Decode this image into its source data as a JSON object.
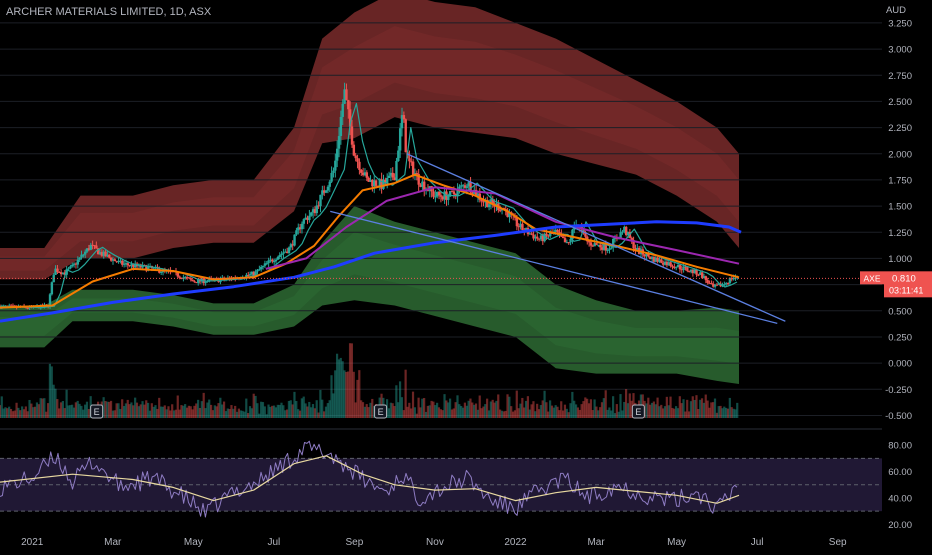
{
  "chart_title": "ARCHER MATERIALS LIMITED, 1D, ASX",
  "currency_label": "AUD",
  "price_badge": {
    "symbol": "AXE",
    "value": "0.810",
    "countdown": "03:11:41"
  },
  "colors": {
    "background": "#000000",
    "axis_text": "#b2b5be",
    "up": "#26a69a",
    "down": "#ef5350",
    "ma_fast": "#26a69a",
    "ma_orange": "#f57c00",
    "ma_purple": "#9c27b0",
    "ma_blue": "#1e3cff",
    "trendline": "#5b7fe0",
    "upper_band": "#7a2b2b",
    "lower_band": "#2e6b34",
    "rsi_line": "#8e7cc3",
    "rsi_ma": "#e8d9a0",
    "rsi_fill": "#241b3a",
    "badge": "#ef5350"
  },
  "chart_data": {
    "type": "candlestick",
    "title": "ARCHER MATERIALS LIMITED, 1D, ASX",
    "y_unit": "AUD",
    "ylim": [
      -0.62,
      3.45
    ],
    "y_ticks": [
      "3.250",
      "3.000",
      "2.750",
      "2.500",
      "2.250",
      "2.000",
      "1.750",
      "1.500",
      "1.250",
      "1.000",
      "0.750",
      "0.500",
      "0.250",
      "0.000",
      "-0.250",
      "-0.500"
    ],
    "y_tick_values": [
      3.25,
      3.0,
      2.75,
      2.5,
      2.25,
      2.0,
      1.75,
      1.5,
      1.25,
      1.0,
      0.75,
      0.5,
      0.25,
      0.0,
      -0.25,
      -0.5
    ],
    "x_ticks": [
      "2021",
      "Mar",
      "May",
      "Jul",
      "Sep",
      "Nov",
      "2022",
      "Mar",
      "May",
      "Jul",
      "Sep"
    ],
    "x_tick_months": [
      0,
      2,
      4,
      6,
      8,
      10,
      12,
      14,
      16,
      18,
      20
    ],
    "x_range_months": [
      -0.8,
      21.1
    ],
    "last_price": 0.81,
    "price_path": [
      {
        "m": -0.8,
        "p": 0.54
      },
      {
        "m": 0.0,
        "p": 0.53
      },
      {
        "m": 0.4,
        "p": 0.55
      },
      {
        "m": 0.55,
        "p": 0.9
      },
      {
        "m": 0.8,
        "p": 0.86
      },
      {
        "m": 1.0,
        "p": 0.92
      },
      {
        "m": 1.45,
        "p": 1.12
      },
      {
        "m": 1.7,
        "p": 1.05
      },
      {
        "m": 2.2,
        "p": 0.95
      },
      {
        "m": 3.0,
        "p": 0.9
      },
      {
        "m": 3.5,
        "p": 0.86
      },
      {
        "m": 4.0,
        "p": 0.78
      },
      {
        "m": 4.8,
        "p": 0.8
      },
      {
        "m": 5.5,
        "p": 0.85
      },
      {
        "m": 6.0,
        "p": 1.0
      },
      {
        "m": 6.4,
        "p": 1.1
      },
      {
        "m": 6.7,
        "p": 1.35
      },
      {
        "m": 7.0,
        "p": 1.45
      },
      {
        "m": 7.5,
        "p": 1.85
      },
      {
        "m": 7.75,
        "p": 2.6
      },
      {
        "m": 8.0,
        "p": 2.0
      },
      {
        "m": 8.3,
        "p": 1.75
      },
      {
        "m": 8.7,
        "p": 1.7
      },
      {
        "m": 9.0,
        "p": 1.8
      },
      {
        "m": 9.2,
        "p": 2.4
      },
      {
        "m": 9.3,
        "p": 1.95
      },
      {
        "m": 9.6,
        "p": 1.75
      },
      {
        "m": 10.0,
        "p": 1.6
      },
      {
        "m": 10.4,
        "p": 1.6
      },
      {
        "m": 10.8,
        "p": 1.72
      },
      {
        "m": 11.2,
        "p": 1.55
      },
      {
        "m": 11.7,
        "p": 1.48
      },
      {
        "m": 12.1,
        "p": 1.3
      },
      {
        "m": 12.6,
        "p": 1.18
      },
      {
        "m": 13.0,
        "p": 1.25
      },
      {
        "m": 13.3,
        "p": 1.12
      },
      {
        "m": 13.5,
        "p": 1.35
      },
      {
        "m": 13.8,
        "p": 1.15
      },
      {
        "m": 14.3,
        "p": 1.1
      },
      {
        "m": 14.7,
        "p": 1.28
      },
      {
        "m": 15.0,
        "p": 1.08
      },
      {
        "m": 15.4,
        "p": 1.0
      },
      {
        "m": 15.8,
        "p": 0.95
      },
      {
        "m": 16.2,
        "p": 0.9
      },
      {
        "m": 16.6,
        "p": 0.85
      },
      {
        "m": 16.9,
        "p": 0.72
      },
      {
        "m": 17.2,
        "p": 0.76
      },
      {
        "m": 17.4,
        "p": 0.82
      },
      {
        "m": 17.55,
        "p": 0.81
      }
    ],
    "upper_band": [
      {
        "m": -0.8,
        "p": 0.95,
        "w": 0.15
      },
      {
        "m": 0.3,
        "p": 0.95,
        "w": 0.15
      },
      {
        "m": 1.2,
        "p": 1.3,
        "w": 0.3
      },
      {
        "m": 2.5,
        "p": 1.3,
        "w": 0.3
      },
      {
        "m": 3.5,
        "p": 1.4,
        "w": 0.3
      },
      {
        "m": 4.5,
        "p": 1.45,
        "w": 0.3
      },
      {
        "m": 5.5,
        "p": 1.45,
        "w": 0.3
      },
      {
        "m": 6.5,
        "p": 1.85,
        "w": 0.4
      },
      {
        "m": 7.2,
        "p": 2.6,
        "w": 0.5
      },
      {
        "m": 8.0,
        "p": 2.75,
        "w": 0.6
      },
      {
        "m": 9.0,
        "p": 2.95,
        "w": 0.6
      },
      {
        "m": 10.0,
        "p": 2.85,
        "w": 0.6
      },
      {
        "m": 11.0,
        "p": 2.8,
        "w": 0.6
      },
      {
        "m": 12.0,
        "p": 2.7,
        "w": 0.55
      },
      {
        "m": 13.0,
        "p": 2.55,
        "w": 0.55
      },
      {
        "m": 14.0,
        "p": 2.4,
        "w": 0.5
      },
      {
        "m": 15.0,
        "p": 2.25,
        "w": 0.45
      },
      {
        "m": 16.0,
        "p": 2.05,
        "w": 0.45
      },
      {
        "m": 17.0,
        "p": 1.8,
        "w": 0.45
      },
      {
        "m": 17.55,
        "p": 1.55,
        "w": 0.45
      }
    ],
    "lower_band": [
      {
        "m": -0.8,
        "p": 0.35,
        "w": 0.2
      },
      {
        "m": 0.3,
        "p": 0.35,
        "w": 0.2
      },
      {
        "m": 1.0,
        "p": 0.55,
        "w": 0.15
      },
      {
        "m": 2.5,
        "p": 0.55,
        "w": 0.15
      },
      {
        "m": 3.5,
        "p": 0.5,
        "w": 0.15
      },
      {
        "m": 4.5,
        "p": 0.42,
        "w": 0.15
      },
      {
        "m": 5.5,
        "p": 0.42,
        "w": 0.15
      },
      {
        "m": 6.5,
        "p": 0.55,
        "w": 0.2
      },
      {
        "m": 7.2,
        "p": 0.85,
        "w": 0.3
      },
      {
        "m": 8.0,
        "p": 1.05,
        "w": 0.45
      },
      {
        "m": 9.0,
        "p": 0.95,
        "w": 0.4
      },
      {
        "m": 10.0,
        "p": 0.85,
        "w": 0.4
      },
      {
        "m": 11.0,
        "p": 0.75,
        "w": 0.4
      },
      {
        "m": 12.0,
        "p": 0.65,
        "w": 0.4
      },
      {
        "m": 13.0,
        "p": 0.35,
        "w": 0.4
      },
      {
        "m": 14.0,
        "p": 0.25,
        "w": 0.35
      },
      {
        "m": 15.0,
        "p": 0.2,
        "w": 0.3
      },
      {
        "m": 16.0,
        "p": 0.2,
        "w": 0.3
      },
      {
        "m": 17.0,
        "p": 0.18,
        "w": 0.35
      },
      {
        "m": 17.55,
        "p": 0.15,
        "w": 0.35
      }
    ],
    "ma_orange": [
      {
        "m": -0.8,
        "p": 0.53
      },
      {
        "m": 0.5,
        "p": 0.55
      },
      {
        "m": 1.5,
        "p": 0.78
      },
      {
        "m": 2.5,
        "p": 0.9
      },
      {
        "m": 3.5,
        "p": 0.88
      },
      {
        "m": 4.5,
        "p": 0.8
      },
      {
        "m": 5.5,
        "p": 0.82
      },
      {
        "m": 6.3,
        "p": 0.95
      },
      {
        "m": 7.0,
        "p": 1.12
      },
      {
        "m": 7.6,
        "p": 1.4
      },
      {
        "m": 8.2,
        "p": 1.65
      },
      {
        "m": 9.0,
        "p": 1.72
      },
      {
        "m": 9.5,
        "p": 1.8
      },
      {
        "m": 10.2,
        "p": 1.7
      },
      {
        "m": 11.0,
        "p": 1.6
      },
      {
        "m": 11.8,
        "p": 1.45
      },
      {
        "m": 12.5,
        "p": 1.28
      },
      {
        "m": 13.5,
        "p": 1.2
      },
      {
        "m": 14.5,
        "p": 1.12
      },
      {
        "m": 15.5,
        "p": 1.03
      },
      {
        "m": 16.5,
        "p": 0.92
      },
      {
        "m": 17.55,
        "p": 0.82
      }
    ],
    "ma_purple": [
      {
        "m": 5.8,
        "p": 0.9
      },
      {
        "m": 6.8,
        "p": 1.0
      },
      {
        "m": 7.8,
        "p": 1.3
      },
      {
        "m": 8.8,
        "p": 1.55
      },
      {
        "m": 10.0,
        "p": 1.68
      },
      {
        "m": 11.5,
        "p": 1.62
      },
      {
        "m": 13.0,
        "p": 1.35
      },
      {
        "m": 14.5,
        "p": 1.2
      },
      {
        "m": 16.0,
        "p": 1.08
      },
      {
        "m": 17.55,
        "p": 0.95
      }
    ],
    "ma_blue": [
      {
        "m": -0.8,
        "p": 0.4
      },
      {
        "m": 0.5,
        "p": 0.48
      },
      {
        "m": 2.0,
        "p": 0.58
      },
      {
        "m": 3.5,
        "p": 0.66
      },
      {
        "m": 5.0,
        "p": 0.73
      },
      {
        "m": 6.5,
        "p": 0.82
      },
      {
        "m": 7.5,
        "p": 0.92
      },
      {
        "m": 8.5,
        "p": 1.05
      },
      {
        "m": 10.0,
        "p": 1.15
      },
      {
        "m": 11.5,
        "p": 1.22
      },
      {
        "m": 13.0,
        "p": 1.3
      },
      {
        "m": 14.5,
        "p": 1.33
      },
      {
        "m": 15.5,
        "p": 1.35
      },
      {
        "m": 16.5,
        "p": 1.34
      },
      {
        "m": 17.3,
        "p": 1.3
      },
      {
        "m": 17.6,
        "p": 1.25
      }
    ],
    "trendlines": [
      {
        "from": {
          "m": 7.4,
          "p": 1.45
        },
        "to": {
          "m": 18.5,
          "p": 0.38
        }
      },
      {
        "from": {
          "m": 9.3,
          "p": 2.0
        },
        "to": {
          "m": 18.7,
          "p": 0.4
        }
      }
    ],
    "earnings_markers": [
      {
        "m": 1.6,
        "label": "E"
      },
      {
        "m": 8.65,
        "label": "E"
      },
      {
        "m": 15.05,
        "label": "E"
      }
    ],
    "rsi": {
      "y_ticks": [
        "80.00",
        "60.00",
        "40.00",
        "20.00"
      ],
      "y_tick_values": [
        80,
        60,
        40,
        20
      ],
      "ylim": [
        18,
        90
      ],
      "upper_level": 70,
      "mid_level": 50,
      "lower_level": 30,
      "line": [
        {
          "m": -0.8,
          "v": 48
        },
        {
          "m": 0.0,
          "v": 55
        },
        {
          "m": 0.6,
          "v": 72
        },
        {
          "m": 1.0,
          "v": 52
        },
        {
          "m": 1.5,
          "v": 68
        },
        {
          "m": 2.2,
          "v": 48
        },
        {
          "m": 3.0,
          "v": 55
        },
        {
          "m": 3.8,
          "v": 40
        },
        {
          "m": 4.3,
          "v": 28
        },
        {
          "m": 5.0,
          "v": 45
        },
        {
          "m": 5.6,
          "v": 52
        },
        {
          "m": 6.2,
          "v": 65
        },
        {
          "m": 6.8,
          "v": 78
        },
        {
          "m": 7.4,
          "v": 73
        },
        {
          "m": 7.9,
          "v": 62
        },
        {
          "m": 8.3,
          "v": 52
        },
        {
          "m": 8.8,
          "v": 45
        },
        {
          "m": 9.2,
          "v": 58
        },
        {
          "m": 9.6,
          "v": 40
        },
        {
          "m": 10.2,
          "v": 48
        },
        {
          "m": 10.8,
          "v": 55
        },
        {
          "m": 11.4,
          "v": 38
        },
        {
          "m": 12.0,
          "v": 32
        },
        {
          "m": 12.5,
          "v": 44
        },
        {
          "m": 13.2,
          "v": 55
        },
        {
          "m": 13.8,
          "v": 40
        },
        {
          "m": 14.5,
          "v": 50
        },
        {
          "m": 15.2,
          "v": 42
        },
        {
          "m": 16.0,
          "v": 38
        },
        {
          "m": 16.5,
          "v": 45
        },
        {
          "m": 17.0,
          "v": 32
        },
        {
          "m": 17.3,
          "v": 40
        },
        {
          "m": 17.55,
          "v": 55
        }
      ],
      "ma": [
        {
          "m": -0.8,
          "v": 52
        },
        {
          "m": 1.0,
          "v": 58
        },
        {
          "m": 2.5,
          "v": 54
        },
        {
          "m": 3.5,
          "v": 48
        },
        {
          "m": 4.5,
          "v": 38
        },
        {
          "m": 5.5,
          "v": 46
        },
        {
          "m": 6.5,
          "v": 66
        },
        {
          "m": 7.3,
          "v": 72
        },
        {
          "m": 8.2,
          "v": 58
        },
        {
          "m": 9.0,
          "v": 50
        },
        {
          "m": 10.0,
          "v": 46
        },
        {
          "m": 11.0,
          "v": 47
        },
        {
          "m": 12.0,
          "v": 38
        },
        {
          "m": 13.0,
          "v": 44
        },
        {
          "m": 14.0,
          "v": 48
        },
        {
          "m": 15.0,
          "v": 45
        },
        {
          "m": 16.0,
          "v": 42
        },
        {
          "m": 17.0,
          "v": 36
        },
        {
          "m": 17.55,
          "v": 42
        }
      ]
    }
  }
}
